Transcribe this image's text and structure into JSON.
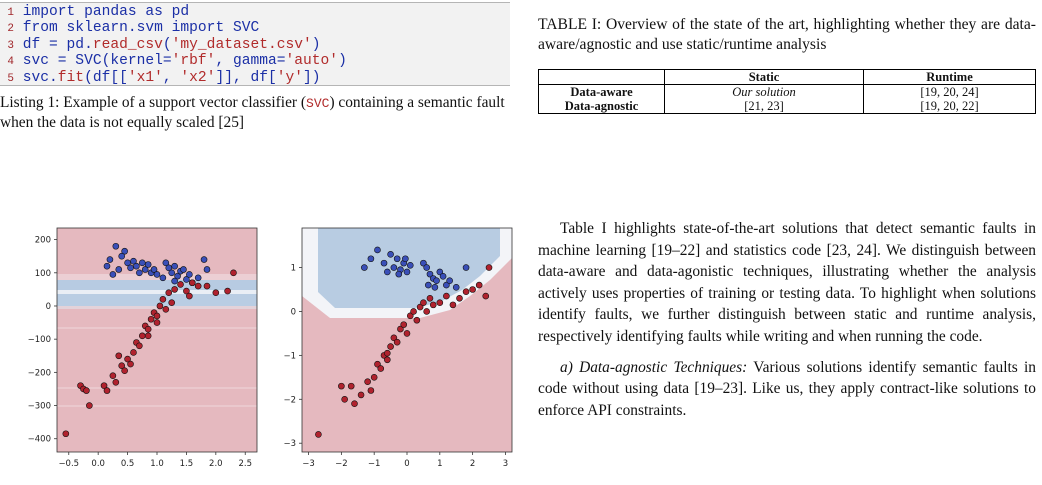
{
  "listing": {
    "lines": [
      {
        "num": "1",
        "parts": [
          {
            "t": "import",
            "c": "kw"
          },
          {
            "t": " pandas as pd",
            "c": "plain"
          }
        ]
      },
      {
        "num": "2",
        "parts": [
          {
            "t": "from",
            "c": "kw"
          },
          {
            "t": " sklearn.svm ",
            "c": "plain"
          },
          {
            "t": "import",
            "c": "kw"
          },
          {
            "t": " SVC",
            "c": "plain"
          }
        ]
      },
      {
        "num": "3",
        "parts": [
          {
            "t": "df = pd.",
            "c": "plain"
          },
          {
            "t": "read_csv",
            "c": "str"
          },
          {
            "t": "(",
            "c": "plain"
          },
          {
            "t": "'my_dataset.csv'",
            "c": "str"
          },
          {
            "t": ")",
            "c": "plain"
          }
        ]
      },
      {
        "num": "4",
        "parts": [
          {
            "t": "svc = SVC(kernel=",
            "c": "plain"
          },
          {
            "t": "'rbf'",
            "c": "str"
          },
          {
            "t": ", gamma=",
            "c": "plain"
          },
          {
            "t": "'auto'",
            "c": "str"
          },
          {
            "t": ")",
            "c": "plain"
          }
        ]
      },
      {
        "num": "5",
        "parts": [
          {
            "t": "svc.",
            "c": "plain"
          },
          {
            "t": "fit",
            "c": "str"
          },
          {
            "t": "(df[[",
            "c": "plain"
          },
          {
            "t": "'x1'",
            "c": "str"
          },
          {
            "t": ", ",
            "c": "plain"
          },
          {
            "t": "'x2'",
            "c": "str"
          },
          {
            "t": "]], df[",
            "c": "plain"
          },
          {
            "t": "'y'",
            "c": "str"
          },
          {
            "t": "])",
            "c": "plain"
          }
        ]
      }
    ],
    "caption_prefix": "Listing 1: Example of a support vector classifier (",
    "caption_code": "SVC",
    "caption_suffix": ") containing a semantic fault when the data is not equally scaled [25]"
  },
  "table": {
    "caption": "TABLE I: Overview of the state of the art, highlighting whether they are data-aware/agnostic and use static/runtime analysis",
    "headers": [
      "",
      "Static",
      "Runtime"
    ],
    "rows": [
      {
        "label": "Data-aware",
        "static": "Our solution",
        "runtime": "[19, 20, 24]"
      },
      {
        "label": "Data-agnostic",
        "static": "[21, 23]",
        "runtime": "[19, 20, 22]"
      }
    ]
  },
  "body": {
    "para1": "Table I highlights state-of-the-art solutions that detect semantic faults in machine learning [19–22] and statistics code [23, 24]. We distinguish between data-aware and data-agonistic techniques, illustrating whether the analysis actively uses properties of training or testing data. To highlight when solutions identify faults, we further distinguish between static and runtime analysis, respectively identifying faults while writing and when running the code.",
    "para2_head": "a) Data-agnostic Techniques:",
    "para2": " Various solutions identify semantic faults in code without using data [19–23]. Like us, they apply contract-like solutions to enforce API constraints."
  },
  "chart_data": [
    {
      "type": "scatter",
      "title": "",
      "xlabel": "",
      "ylabel": "",
      "xticks": [
        "−0.5",
        "0.0",
        "0.5",
        "1.0",
        "1.5",
        "2.0",
        "2.5"
      ],
      "yticks": [
        "200",
        "100",
        "0",
        "−100",
        "−200",
        "−300",
        "−400"
      ],
      "xlim": [
        -0.7,
        2.7
      ],
      "ylim": [
        -440,
        235
      ],
      "grid": false,
      "series": [
        {
          "class": "blue",
          "color": "#3a4fb8",
          "points": [
            [
              0.3,
              180
            ],
            [
              0.45,
              165
            ],
            [
              0.2,
              140
            ],
            [
              0.4,
              150
            ],
            [
              0.5,
              130
            ],
            [
              0.55,
              115
            ],
            [
              0.6,
              135
            ],
            [
              0.65,
              120
            ],
            [
              0.7,
              100
            ],
            [
              0.75,
              130
            ],
            [
              0.8,
              110
            ],
            [
              0.85,
              125
            ],
            [
              0.9,
              100
            ],
            [
              0.95,
              110
            ],
            [
              1.0,
              95
            ],
            [
              0.35,
              110
            ],
            [
              0.25,
              95
            ],
            [
              1.15,
              130
            ],
            [
              1.2,
              115
            ],
            [
              1.25,
              100
            ],
            [
              1.3,
              120
            ],
            [
              1.35,
              90
            ],
            [
              1.4,
              105
            ],
            [
              1.45,
              110
            ],
            [
              1.5,
              80
            ],
            [
              1.55,
              95
            ],
            [
              1.6,
              70
            ],
            [
              1.7,
              85
            ],
            [
              1.8,
              140
            ],
            [
              1.85,
              110
            ],
            [
              0.15,
              120
            ],
            [
              1.1,
              85
            ],
            [
              1.3,
              75
            ]
          ]
        },
        {
          "class": "red",
          "color": "#b0222e",
          "points": [
            [
              -0.55,
              -385
            ],
            [
              -0.3,
              -240
            ],
            [
              -0.25,
              -250
            ],
            [
              -0.2,
              -255
            ],
            [
              -0.15,
              -300
            ],
            [
              0.1,
              -240
            ],
            [
              0.15,
              -255
            ],
            [
              0.25,
              -210
            ],
            [
              0.3,
              -230
            ],
            [
              0.35,
              -150
            ],
            [
              0.4,
              -180
            ],
            [
              0.45,
              -195
            ],
            [
              0.5,
              -160
            ],
            [
              0.55,
              -175
            ],
            [
              0.6,
              -140
            ],
            [
              0.65,
              -110
            ],
            [
              0.7,
              -120
            ],
            [
              0.75,
              -90
            ],
            [
              0.8,
              -60
            ],
            [
              0.85,
              -70
            ],
            [
              0.9,
              -40
            ],
            [
              0.95,
              -20
            ],
            [
              1.0,
              -50
            ],
            [
              1.05,
              0
            ],
            [
              1.1,
              20
            ],
            [
              1.15,
              -10
            ],
            [
              1.2,
              40
            ],
            [
              1.3,
              50
            ],
            [
              1.4,
              65
            ],
            [
              1.5,
              45
            ],
            [
              1.55,
              30
            ],
            [
              1.6,
              70
            ],
            [
              1.7,
              60
            ],
            [
              1.85,
              60
            ],
            [
              2.0,
              40
            ],
            [
              2.2,
              45
            ],
            [
              2.3,
              100
            ],
            [
              0.85,
              -90
            ],
            [
              1.0,
              -30
            ],
            [
              1.25,
              10
            ]
          ]
        }
      ]
    },
    {
      "type": "scatter",
      "title": "",
      "xlabel": "",
      "ylabel": "",
      "xticks": [
        "−3",
        "−2",
        "−1",
        "0",
        "1",
        "2",
        "3"
      ],
      "yticks": [
        "1",
        "0",
        "−1",
        "−2",
        "−3"
      ],
      "xlim": [
        -3.2,
        3.2
      ],
      "ylim": [
        -3.2,
        1.9
      ],
      "grid": false,
      "series": [
        {
          "class": "blue",
          "color": "#3a4fb8",
          "points": [
            [
              -1.1,
              1.2
            ],
            [
              -0.9,
              1.4
            ],
            [
              -0.7,
              1.1
            ],
            [
              -0.5,
              1.3
            ],
            [
              -0.4,
              1.0
            ],
            [
              -0.3,
              1.2
            ],
            [
              -0.2,
              0.95
            ],
            [
              -0.1,
              1.1
            ],
            [
              0.0,
              0.9
            ],
            [
              0.1,
              1.05
            ],
            [
              -0.05,
              1.2
            ],
            [
              -0.25,
              0.85
            ],
            [
              0.5,
              1.1
            ],
            [
              0.6,
              1.0
            ],
            [
              0.7,
              0.85
            ],
            [
              0.8,
              0.75
            ],
            [
              0.9,
              0.7
            ],
            [
              1.0,
              0.9
            ],
            [
              1.1,
              0.8
            ],
            [
              1.2,
              0.6
            ],
            [
              1.3,
              0.7
            ],
            [
              1.5,
              0.55
            ],
            [
              1.8,
              1.0
            ],
            [
              -1.3,
              1.0
            ],
            [
              -0.6,
              0.9
            ],
            [
              0.65,
              0.6
            ],
            [
              0.85,
              0.55
            ]
          ]
        },
        {
          "class": "red",
          "color": "#b0222e",
          "points": [
            [
              -2.7,
              -2.8
            ],
            [
              -2.0,
              -1.7
            ],
            [
              -1.9,
              -2.0
            ],
            [
              -1.7,
              -1.7
            ],
            [
              -1.6,
              -2.1
            ],
            [
              -1.2,
              -1.6
            ],
            [
              -1.1,
              -1.8
            ],
            [
              -1.0,
              -1.5
            ],
            [
              -0.9,
              -1.2
            ],
            [
              -0.8,
              -1.3
            ],
            [
              -0.7,
              -1.0
            ],
            [
              -0.6,
              -1.1
            ],
            [
              -0.5,
              -0.8
            ],
            [
              -0.4,
              -0.6
            ],
            [
              -0.3,
              -0.7
            ],
            [
              -0.2,
              -0.4
            ],
            [
              -0.1,
              -0.3
            ],
            [
              0.0,
              -0.5
            ],
            [
              0.1,
              -0.1
            ],
            [
              0.2,
              0.0
            ],
            [
              0.3,
              -0.2
            ],
            [
              0.4,
              0.1
            ],
            [
              0.5,
              0.2
            ],
            [
              0.6,
              0.0
            ],
            [
              0.7,
              0.3
            ],
            [
              0.8,
              0.15
            ],
            [
              1.0,
              0.2
            ],
            [
              1.2,
              0.35
            ],
            [
              1.4,
              0.15
            ],
            [
              1.6,
              0.3
            ],
            [
              1.8,
              0.45
            ],
            [
              2.0,
              0.5
            ],
            [
              2.2,
              0.6
            ],
            [
              2.4,
              0.35
            ],
            [
              2.5,
              1.0
            ],
            [
              -0.6,
              -0.95
            ],
            [
              -1.4,
              -1.9
            ]
          ]
        }
      ]
    }
  ]
}
